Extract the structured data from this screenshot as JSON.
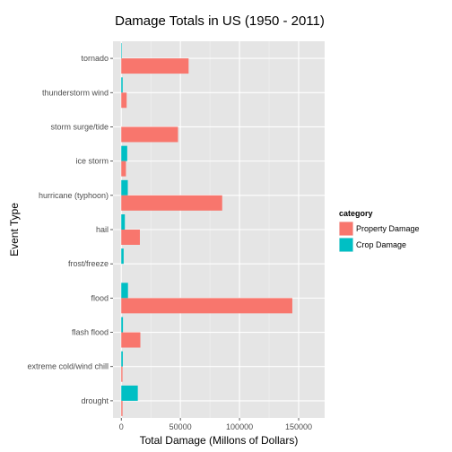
{
  "chart_data": {
    "type": "bar",
    "orientation": "horizontal",
    "title": "Damage Totals in US (1950 - 2011)",
    "xlabel": "Total Damage (Millons of Dollars)",
    "ylabel": "Event Type",
    "xlim": [
      -7000,
      172000
    ],
    "xticks": [
      0,
      50000,
      100000,
      150000
    ],
    "xtick_labels": [
      "0",
      "50000",
      "100000",
      "150000"
    ],
    "grid": true,
    "legend": {
      "title": "category",
      "position": "right"
    },
    "categories": [
      "tornado",
      "thunderstorm wind",
      "storm surge/tide",
      "ice storm",
      "hurricane (typhoon)",
      "hail",
      "frost/freeze",
      "flood",
      "flash flood",
      "extreme cold/wind chill",
      "drought"
    ],
    "series": [
      {
        "name": "Crop Damage",
        "color": "#00BFC4",
        "values": [
          415,
          1160,
          0,
          5022,
          5516,
          3026,
          1997,
          5662,
          1421,
          1293,
          13973
        ]
      },
      {
        "name": "Property Damage",
        "color": "#F8766D",
        "values": [
          56937,
          4548,
          47964,
          3945,
          85356,
          15733,
          10,
          144658,
          16141,
          1000,
          1046
        ]
      }
    ]
  }
}
